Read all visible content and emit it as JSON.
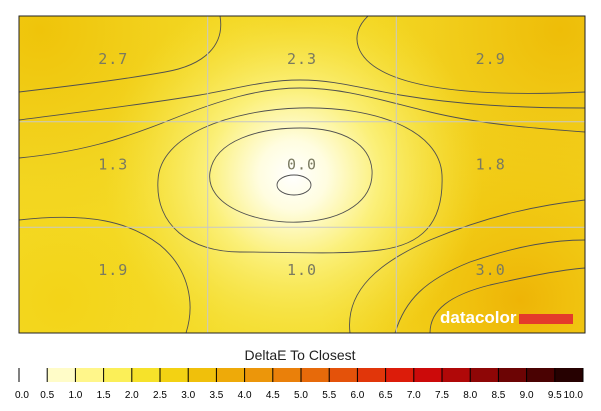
{
  "chart_data": {
    "type": "heatmap",
    "title": "DeltaE To Closest",
    "grid": true,
    "rows": 3,
    "cols": 3,
    "values": [
      [
        2.7,
        2.3,
        2.9
      ],
      [
        1.3,
        0.0,
        1.8
      ],
      [
        1.9,
        1.0,
        3.0
      ]
    ],
    "labels": [
      [
        "2.7",
        "2.3",
        "2.9"
      ],
      [
        "1.3",
        "0.0",
        "1.8"
      ],
      [
        "1.9",
        "1.0",
        "3.0"
      ]
    ],
    "scale_min": 0.0,
    "scale_max": 10.0,
    "scale_ticks": [
      "0.0",
      "0.5",
      "1.0",
      "1.5",
      "2.0",
      "2.5",
      "3.0",
      "3.5",
      "4.0",
      "4.5",
      "5.0",
      "5.5",
      "6.0",
      "6.5",
      "7.0",
      "7.5",
      "8.0",
      "8.5",
      "9.0",
      "9.5",
      "10.0"
    ],
    "scale_colors": [
      "#ffffff",
      "#fffcc8",
      "#fff68a",
      "#fbef58",
      "#f6e22a",
      "#f3d213",
      "#f0c00b",
      "#eeaa09",
      "#ec960a",
      "#ea800a",
      "#e76a0a",
      "#e4520a",
      "#e1360a",
      "#dc1c0a",
      "#cc0a0a",
      "#b00808",
      "#8e0606",
      "#6c0404",
      "#4a0202",
      "#260101",
      "#000000"
    ]
  },
  "logo": {
    "text": "datacolor",
    "bar_color": "#e43b2b"
  },
  "colors": {
    "contour": "#505050",
    "grid": "#c8c8c8",
    "frame": "#222222"
  }
}
